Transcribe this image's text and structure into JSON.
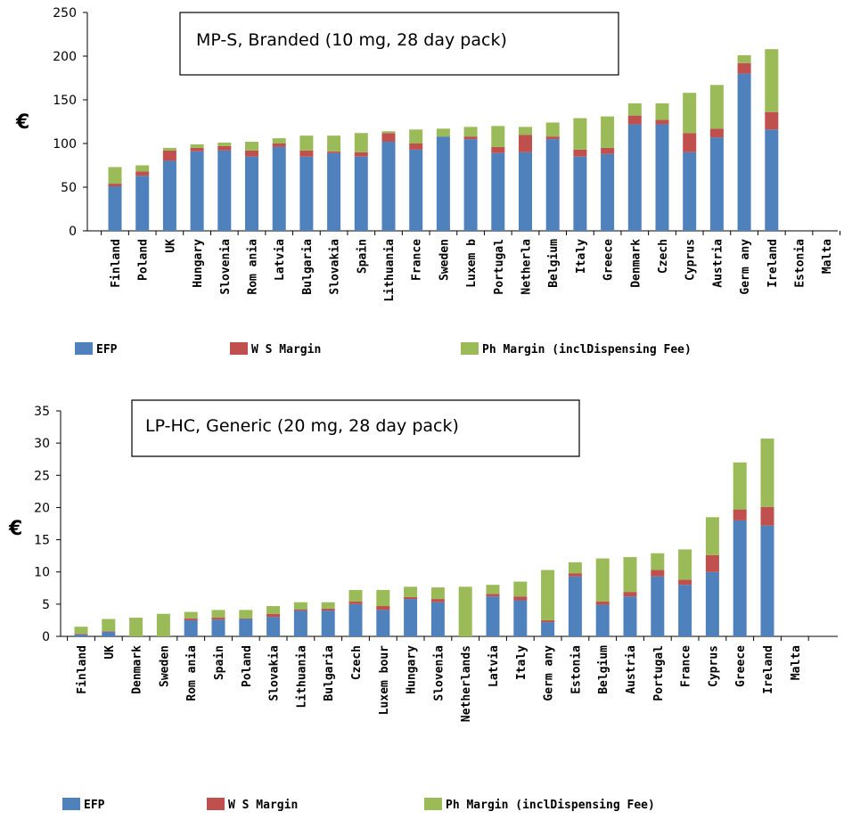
{
  "chart_data": [
    {
      "type": "bar",
      "stacked": true,
      "title": "MP-S, Branded (10 mg, 28 day pack)",
      "ylabel": "€",
      "ylim": [
        0,
        250
      ],
      "yticks": [
        0,
        50,
        100,
        150,
        200,
        250
      ],
      "categories": [
        "Finland",
        "Poland",
        "UK",
        "Hungary",
        "Slovenia",
        "Romania",
        "Latvia",
        "Bulgaria",
        "Slovakia",
        "Spain",
        "Lithuania",
        "France",
        "Sweden",
        "Luxemb",
        "Portugal",
        "Netherlands",
        "Belgium",
        "Italy",
        "Greece",
        "Denmark",
        "Czech",
        "Cyprus",
        "Austria",
        "Germany",
        "Ireland",
        "Estonia",
        "Malta"
      ],
      "category_labels": [
        "Finland",
        "Poland",
        "UK",
        "Hungary",
        "Slovenia",
        "Rom ania",
        "Latvia",
        "Bulgaria",
        "Slovakia",
        "Spain",
        "Lithuania",
        "France",
        "Sweden",
        "Luxem b",
        "Portugal",
        "Netherla",
        "Belgium",
        "Italy",
        "Greece",
        "Denmark",
        "Czech",
        "Cyprus",
        "Austria",
        "Germ any",
        "Ireland",
        "Estonia",
        "Malta"
      ],
      "series": [
        {
          "name": "EFP",
          "color": "#4f81bd",
          "values": [
            51,
            63,
            80,
            91,
            92,
            85,
            96,
            85,
            89,
            85,
            102,
            93,
            108,
            105,
            89,
            90,
            105,
            85,
            88,
            122,
            122,
            90,
            107,
            180,
            116,
            0,
            0
          ]
        },
        {
          "name": "W S Margin",
          "color": "#c0504d",
          "values": [
            3,
            5,
            12,
            4,
            5,
            7,
            4,
            7,
            2,
            5,
            10,
            7,
            0,
            3,
            7,
            20,
            3,
            8,
            7,
            10,
            5,
            22,
            10,
            12,
            20,
            0,
            0
          ]
        },
        {
          "name": "Ph Margin (inclDispensing Fee)",
          "color": "#9bbb59",
          "values": [
            19,
            7,
            3,
            4,
            4,
            10,
            6,
            17,
            18,
            22,
            2,
            16,
            9,
            11,
            24,
            9,
            16,
            36,
            36,
            14,
            19,
            46,
            50,
            9,
            72,
            0,
            0
          ]
        }
      ],
      "legend": [
        {
          "label": "EFP",
          "color": "#4f81bd"
        },
        {
          "label": "W S Margin",
          "color": "#c0504d"
        },
        {
          "label": "Ph Margin (inclDispensing Fee)",
          "color": "#9bbb59"
        }
      ]
    },
    {
      "type": "bar",
      "stacked": true,
      "title": "LP-HC, Generic (20 mg, 28 day pack)",
      "ylabel": "€",
      "ylim": [
        0,
        35
      ],
      "yticks": [
        0,
        5,
        10,
        15,
        20,
        25,
        30,
        35
      ],
      "categories": [
        "Finland",
        "UK",
        "Denmark",
        "Sweden",
        "Romania",
        "Spain",
        "Poland",
        "Slovakia",
        "Lithuania",
        "Bulgaria",
        "Czech",
        "Luxembourg",
        "Hungary",
        "Slovenia",
        "Netherlands",
        "Latvia",
        "Italy",
        "Germany",
        "Estonia",
        "Belgium",
        "Austria",
        "Portugal",
        "France",
        "Cyprus",
        "Greece",
        "Ireland",
        "Malta"
      ],
      "category_labels": [
        "Finland",
        "UK",
        "Denmark",
        "Sweden",
        "Rom ania",
        "Spain",
        "Poland",
        "Slovakia",
        "Lithuania",
        "Bulgaria",
        "Czech",
        "Luxem bour",
        "Hungary",
        "Slovenia",
        "Netherlands",
        "Latvia",
        "Italy",
        "Germ any",
        "Estonia",
        "Belgium",
        "Austria",
        "Portugal",
        "France",
        "Cyprus",
        "Greece",
        "Ireland",
        "Malta"
      ],
      "series": [
        {
          "name": "EFP",
          "color": "#4f81bd",
          "values": [
            0.3,
            0.7,
            0,
            0,
            2.5,
            2.6,
            2.7,
            3.0,
            4.0,
            4.0,
            5.0,
            4.1,
            5.8,
            5.3,
            0,
            6.2,
            5.6,
            2.2,
            9.3,
            4.9,
            6.2,
            9.3,
            8.0,
            10.0,
            18.0,
            17.2,
            0
          ]
        },
        {
          "name": "W S Margin",
          "color": "#c0504d",
          "values": [
            0.1,
            0.1,
            0,
            0,
            0.3,
            0.3,
            0.1,
            0.5,
            0.2,
            0.3,
            0.4,
            0.6,
            0.3,
            0.5,
            0,
            0.4,
            0.6,
            0.3,
            0.5,
            0.5,
            0.7,
            1.0,
            0.8,
            2.6,
            1.7,
            2.9,
            0
          ]
        },
        {
          "name": "Ph Margin (inclDispensing Fee)",
          "color": "#9bbb59",
          "values": [
            1.1,
            1.9,
            2.9,
            3.5,
            1.0,
            1.2,
            1.3,
            1.2,
            1.1,
            1.0,
            1.8,
            2.5,
            1.6,
            1.8,
            7.7,
            1.4,
            2.3,
            7.8,
            1.7,
            6.7,
            5.4,
            2.6,
            4.7,
            5.9,
            7.3,
            10.6,
            0
          ]
        }
      ],
      "legend": [
        {
          "label": "EFP",
          "color": "#4f81bd"
        },
        {
          "label": "W S Margin",
          "color": "#c0504d"
        },
        {
          "label": "Ph Margin (inclDispensing Fee)",
          "color": "#9bbb59"
        }
      ]
    }
  ]
}
